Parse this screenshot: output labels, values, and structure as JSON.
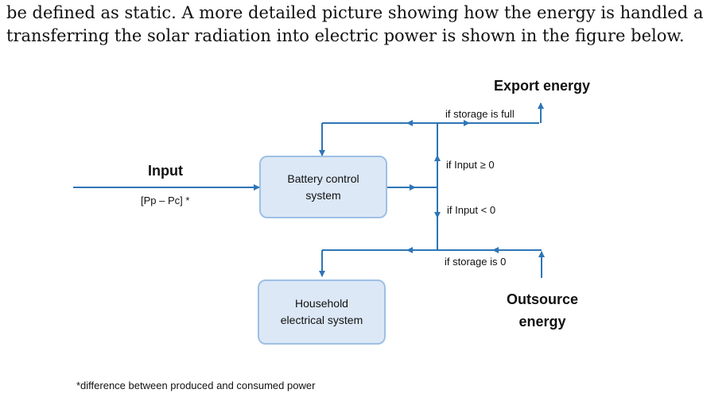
{
  "paragraph": {
    "line1": "be defined as static.  A more detailed picture showing how the energy is handled after",
    "line2": "transferring the solar radiation into electric power is shown in the figure below."
  },
  "diagram": {
    "export_energy": "Export energy",
    "if_storage_full": "if storage is full",
    "input_label": "Input",
    "input_formula": "[Pp – Pc] *",
    "battery_line1": "Battery control",
    "battery_line2": "system",
    "if_input_ge0": "if Input ≥ 0",
    "if_input_lt0": "if Input < 0",
    "if_storage_zero": "if storage is 0",
    "household_line1": "Household",
    "household_line2": "electrical system",
    "outsource_line1": "Outsource",
    "outsource_line2": "energy",
    "footnote": "*difference between produced and consumed power",
    "line_color": "#2e75b6"
  }
}
